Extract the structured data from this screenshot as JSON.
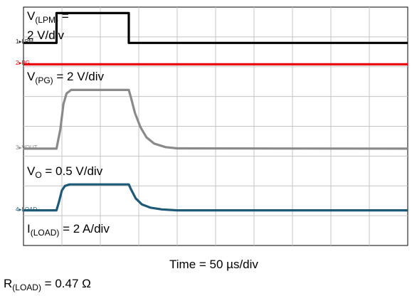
{
  "chart_data": {
    "type": "line",
    "time_label": "Time = 50 µs/div",
    "load_resistance": {
      "prefix": "R",
      "sub": "(LOAD)",
      "suffix": " = 0.47 Ω"
    },
    "x": {
      "divisions": 10,
      "min": 0,
      "max": 500,
      "unit": "µs"
    },
    "y": {
      "divisions": 8
    },
    "grid": true,
    "colors": {
      "lpm": "#000000",
      "pg": "#e8000b",
      "vout": "#8a8a8a",
      "load": "#1e5a78"
    },
    "channels": [
      {
        "id": "lpm",
        "channel_label": "LPM",
        "scale": {
          "prefix": "V",
          "sub": "(LPM)",
          "line1_suffix": " =",
          "line2": "2 V/div"
        },
        "points": [
          [
            0,
            6.8
          ],
          [
            43,
            6.8
          ],
          [
            43,
            7.8
          ],
          [
            137,
            7.8
          ],
          [
            137,
            6.8
          ],
          [
            500,
            6.8
          ]
        ]
      },
      {
        "id": "pg",
        "channel_label": "PG",
        "scale": {
          "prefix": "V",
          "sub": "(PG)",
          "suffix": " = 2 V/div"
        },
        "points": [
          [
            0,
            6.08
          ],
          [
            500,
            6.08
          ]
        ]
      },
      {
        "id": "vout",
        "channel_label": "VOUT",
        "scale": {
          "prefix": "V",
          "sub": "O",
          "suffix": " = 0.5 V/div"
        },
        "points": [
          [
            0,
            3.25
          ],
          [
            43,
            3.25
          ],
          [
            48,
            3.9
          ],
          [
            52,
            4.75
          ],
          [
            56,
            5.1
          ],
          [
            62,
            5.22
          ],
          [
            137,
            5.22
          ],
          [
            140,
            4.95
          ],
          [
            145,
            4.45
          ],
          [
            152,
            3.98
          ],
          [
            160,
            3.63
          ],
          [
            170,
            3.42
          ],
          [
            185,
            3.3
          ],
          [
            200,
            3.26
          ],
          [
            500,
            3.25
          ]
        ]
      },
      {
        "id": "load",
        "channel_label": "LOAD",
        "scale": {
          "prefix": "I",
          "sub": "(LOAD)",
          "suffix": " = 2 A/div"
        },
        "points": [
          [
            0,
            1.18
          ],
          [
            43,
            1.18
          ],
          [
            46,
            1.45
          ],
          [
            50,
            1.85
          ],
          [
            54,
            2.0
          ],
          [
            60,
            2.05
          ],
          [
            137,
            2.05
          ],
          [
            140,
            1.88
          ],
          [
            146,
            1.58
          ],
          [
            154,
            1.38
          ],
          [
            165,
            1.27
          ],
          [
            180,
            1.21
          ],
          [
            200,
            1.18
          ],
          [
            500,
            1.18
          ]
        ]
      }
    ]
  }
}
